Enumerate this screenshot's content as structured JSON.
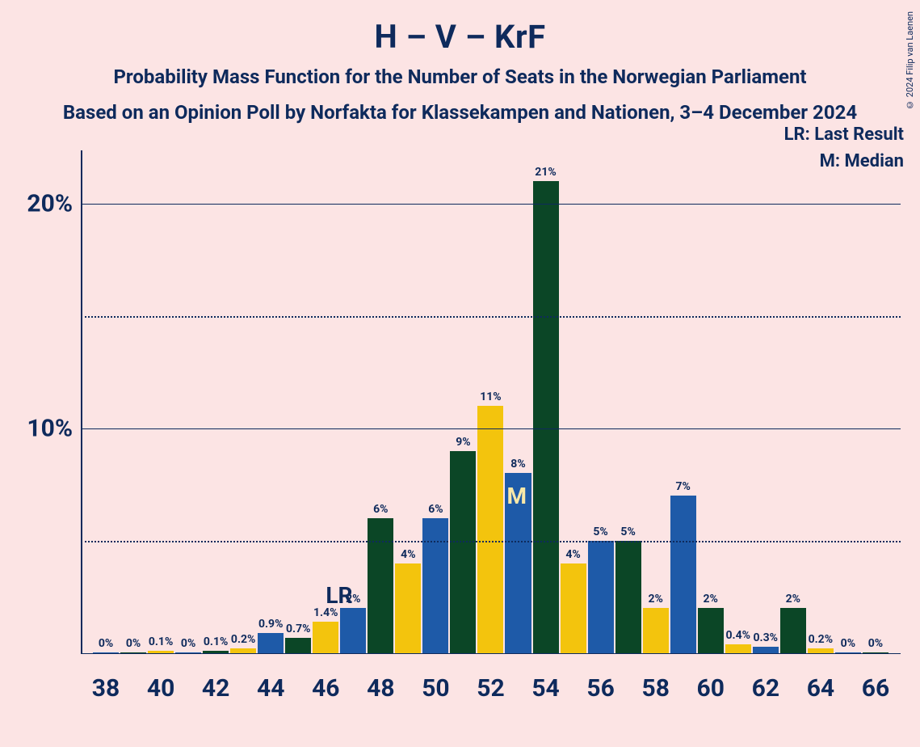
{
  "title": "H – V – KrF",
  "subtitle_line1": "Probability Mass Function for the Number of Seats in the Norwegian Parliament",
  "subtitle_line2": "Based on an Opinion Poll by Norfakta for Klassekampen and Nationen, 3–4 December 2024",
  "legend_lr": "LR: Last Result",
  "legend_m": "M: Median",
  "credit": "© 2024 Filip van Laenen",
  "chart": {
    "type": "bar",
    "background_color": "#fce4e4",
    "text_color": "#0e2a5c",
    "grid_color_solid": "#0e2a5c",
    "grid_color_dotted": "#0e2a5c",
    "ylim": [
      0,
      22
    ],
    "y_ticks_solid": [
      10,
      20
    ],
    "y_ticks_dotted": [
      5,
      15
    ],
    "y_tick_labels": {
      "10": "10%",
      "20": "20%"
    },
    "x_categories": [
      38,
      39,
      40,
      41,
      42,
      43,
      44,
      45,
      46,
      47,
      48,
      49,
      50,
      51,
      52,
      53,
      54,
      55,
      56,
      57,
      58,
      59,
      60,
      61,
      62,
      63,
      64,
      65,
      66
    ],
    "x_tick_labels": [
      38,
      40,
      42,
      44,
      46,
      48,
      50,
      52,
      54,
      56,
      58,
      60,
      62,
      64,
      66
    ],
    "bar_colors_cycle": [
      "#1e5aa8",
      "#0b4626",
      "#f3c40d"
    ],
    "bars": [
      {
        "x": 38,
        "label": "0%",
        "value": 0.05
      },
      {
        "x": 39,
        "label": "0%",
        "value": 0.05
      },
      {
        "x": 40,
        "label": "0.1%",
        "value": 0.1
      },
      {
        "x": 41,
        "label": "0%",
        "value": 0.05
      },
      {
        "x": 42,
        "label": "0.1%",
        "value": 0.1
      },
      {
        "x": 43,
        "label": "0.2%",
        "value": 0.2
      },
      {
        "x": 44,
        "label": "0.9%",
        "value": 0.9
      },
      {
        "x": 45,
        "label": "0.7%",
        "value": 0.7
      },
      {
        "x": 46,
        "label": "1.4%",
        "value": 1.4
      },
      {
        "x": 47,
        "label": "2%",
        "value": 2
      },
      {
        "x": 48,
        "label": "6%",
        "value": 6
      },
      {
        "x": 49,
        "label": "4%",
        "value": 4
      },
      {
        "x": 50,
        "label": "6%",
        "value": 6
      },
      {
        "x": 51,
        "label": "9%",
        "value": 9
      },
      {
        "x": 52,
        "label": "11%",
        "value": 11
      },
      {
        "x": 53,
        "label": "8%",
        "value": 8
      },
      {
        "x": 54,
        "label": "21%",
        "value": 21
      },
      {
        "x": 55,
        "label": "4%",
        "value": 4
      },
      {
        "x": 56,
        "label": "5%",
        "value": 5
      },
      {
        "x": 57,
        "label": "5%",
        "value": 5
      },
      {
        "x": 58,
        "label": "2%",
        "value": 2
      },
      {
        "x": 59,
        "label": "7%",
        "value": 7
      },
      {
        "x": 60,
        "label": "2%",
        "value": 2
      },
      {
        "x": 61,
        "label": "0.4%",
        "value": 0.4
      },
      {
        "x": 62,
        "label": "0.3%",
        "value": 0.3
      },
      {
        "x": 63,
        "label": "2%",
        "value": 2
      },
      {
        "x": 64,
        "label": "0.2%",
        "value": 0.2
      },
      {
        "x": 65,
        "label": "0%",
        "value": 0.05
      },
      {
        "x": 66,
        "label": "0%",
        "value": 0.05
      }
    ],
    "markers": {
      "LR": {
        "x": 47,
        "text": "LR",
        "class": "lr"
      },
      "M": {
        "x": 53,
        "text": "M",
        "class": "m"
      }
    }
  }
}
